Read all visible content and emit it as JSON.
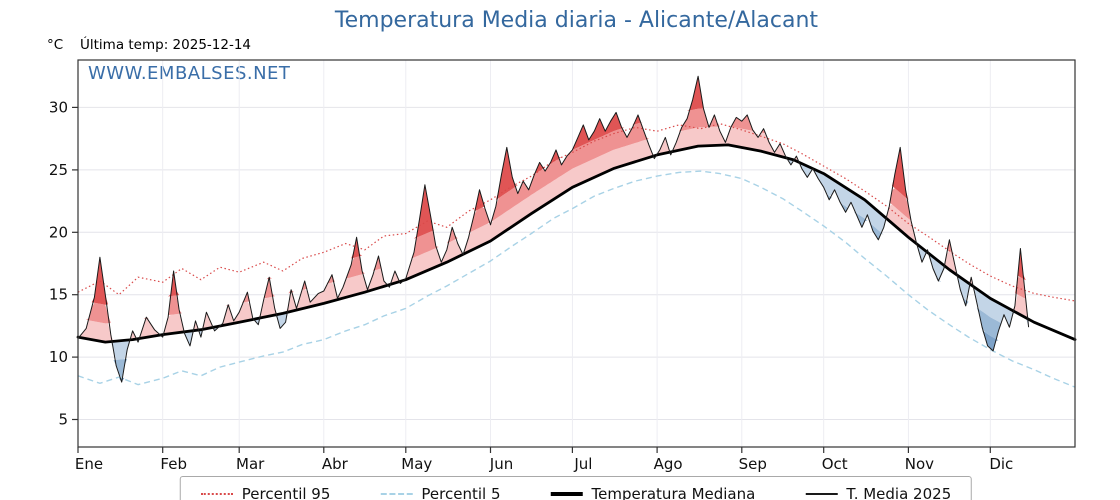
{
  "watermark": "WWW.EMBALSES.NET",
  "header": {
    "unit": "°C",
    "last_temp": "Última temp: 2025-12-14"
  },
  "colors": {
    "title_blue": "#34689e",
    "watermark_blue": "#3a6ea8",
    "grid": "#e4e4ea",
    "frame": "#333333"
  },
  "chart_data": {
    "type": "line",
    "title": "Temperatura Media diaria - Alicante/Alacant",
    "ylabel": "°C",
    "annotation_last_temp": "Última temp: 2025-12-14",
    "legend_position": "bottom",
    "grid": true,
    "x_range_days": 365,
    "x_tick_labels": [
      "Ene",
      "Feb",
      "Mar",
      "Abr",
      "May",
      "Jun",
      "Jul",
      "Ago",
      "Sep",
      "Oct",
      "Nov",
      "Dic"
    ],
    "month_start_days": [
      0,
      31,
      59,
      90,
      120,
      151,
      181,
      212,
      243,
      273,
      304,
      334
    ],
    "y_ticks": [
      5,
      10,
      15,
      20,
      25,
      30
    ],
    "ylim": [
      2.8,
      33.8
    ],
    "series": [
      {
        "id": "p95",
        "name": "Percentil 95",
        "style": "dotted",
        "color": "#d94a4a",
        "points": [
          [
            0,
            15.2
          ],
          [
            8,
            16.1
          ],
          [
            15,
            15.0
          ],
          [
            22,
            16.4
          ],
          [
            31,
            16.0
          ],
          [
            38,
            17.1
          ],
          [
            45,
            16.2
          ],
          [
            52,
            17.2
          ],
          [
            59,
            16.8
          ],
          [
            68,
            17.6
          ],
          [
            75,
            16.9
          ],
          [
            82,
            17.9
          ],
          [
            90,
            18.4
          ],
          [
            98,
            19.1
          ],
          [
            105,
            18.6
          ],
          [
            112,
            19.7
          ],
          [
            120,
            19.9
          ],
          [
            128,
            20.9
          ],
          [
            135,
            20.4
          ],
          [
            143,
            21.7
          ],
          [
            151,
            22.6
          ],
          [
            159,
            23.7
          ],
          [
            166,
            24.5
          ],
          [
            174,
            25.7
          ],
          [
            181,
            26.4
          ],
          [
            189,
            27.3
          ],
          [
            196,
            27.9
          ],
          [
            204,
            28.4
          ],
          [
            212,
            28.1
          ],
          [
            220,
            28.6
          ],
          [
            228,
            28.3
          ],
          [
            235,
            28.7
          ],
          [
            243,
            28.2
          ],
          [
            250,
            27.7
          ],
          [
            258,
            27.1
          ],
          [
            265,
            26.3
          ],
          [
            273,
            25.3
          ],
          [
            281,
            24.3
          ],
          [
            288,
            23.3
          ],
          [
            296,
            22.1
          ],
          [
            304,
            20.7
          ],
          [
            311,
            19.7
          ],
          [
            319,
            18.5
          ],
          [
            326,
            17.5
          ],
          [
            334,
            16.5
          ],
          [
            342,
            15.7
          ],
          [
            350,
            15.1
          ],
          [
            357,
            14.8
          ],
          [
            365,
            14.5
          ]
        ]
      },
      {
        "id": "p5",
        "name": "Percentil 5",
        "style": "dashed",
        "color": "#a8d2e6",
        "points": [
          [
            0,
            8.5
          ],
          [
            8,
            7.9
          ],
          [
            15,
            8.4
          ],
          [
            22,
            7.8
          ],
          [
            31,
            8.3
          ],
          [
            38,
            8.9
          ],
          [
            45,
            8.5
          ],
          [
            52,
            9.2
          ],
          [
            59,
            9.6
          ],
          [
            68,
            10.1
          ],
          [
            75,
            10.4
          ],
          [
            82,
            11.0
          ],
          [
            90,
            11.4
          ],
          [
            98,
            12.1
          ],
          [
            105,
            12.6
          ],
          [
            112,
            13.3
          ],
          [
            120,
            13.9
          ],
          [
            128,
            14.9
          ],
          [
            135,
            15.7
          ],
          [
            143,
            16.7
          ],
          [
            151,
            17.7
          ],
          [
            159,
            18.9
          ],
          [
            166,
            19.9
          ],
          [
            174,
            21.1
          ],
          [
            181,
            21.9
          ],
          [
            189,
            22.9
          ],
          [
            196,
            23.5
          ],
          [
            204,
            24.1
          ],
          [
            212,
            24.5
          ],
          [
            220,
            24.8
          ],
          [
            228,
            24.9
          ],
          [
            235,
            24.7
          ],
          [
            243,
            24.3
          ],
          [
            250,
            23.6
          ],
          [
            258,
            22.7
          ],
          [
            265,
            21.7
          ],
          [
            273,
            20.5
          ],
          [
            281,
            19.2
          ],
          [
            288,
            17.9
          ],
          [
            296,
            16.5
          ],
          [
            304,
            15.0
          ],
          [
            311,
            13.8
          ],
          [
            319,
            12.6
          ],
          [
            326,
            11.6
          ],
          [
            334,
            10.6
          ],
          [
            342,
            9.7
          ],
          [
            350,
            9.0
          ],
          [
            357,
            8.3
          ],
          [
            365,
            7.6
          ]
        ]
      },
      {
        "id": "median",
        "name": "Temperatura Mediana",
        "style": "solid-thick",
        "color": "#000000",
        "points": [
          [
            0,
            11.6
          ],
          [
            10,
            11.2
          ],
          [
            20,
            11.4
          ],
          [
            31,
            11.8
          ],
          [
            45,
            12.2
          ],
          [
            59,
            12.8
          ],
          [
            75,
            13.5
          ],
          [
            90,
            14.3
          ],
          [
            105,
            15.2
          ],
          [
            120,
            16.2
          ],
          [
            135,
            17.6
          ],
          [
            151,
            19.3
          ],
          [
            166,
            21.5
          ],
          [
            181,
            23.6
          ],
          [
            196,
            25.1
          ],
          [
            212,
            26.2
          ],
          [
            227,
            26.9
          ],
          [
            238,
            27.0
          ],
          [
            250,
            26.5
          ],
          [
            262,
            25.8
          ],
          [
            273,
            24.7
          ],
          [
            288,
            22.6
          ],
          [
            304,
            19.6
          ],
          [
            319,
            17.0
          ],
          [
            334,
            14.7
          ],
          [
            350,
            12.8
          ],
          [
            365,
            11.4
          ]
        ]
      },
      {
        "id": "t2025",
        "name": "T. Media 2025",
        "style": "solid-thin",
        "color": "#1a1a1a",
        "fill_above": [
          "#f7c9c9",
          "#ef9292",
          "#e05555"
        ],
        "fill_below": [
          "#c3d5e7",
          "#9bb9d6",
          "#7da2c8"
        ],
        "points": [
          [
            0,
            11.5
          ],
          [
            3,
            12.3
          ],
          [
            6,
            14.8
          ],
          [
            8,
            18.0
          ],
          [
            10,
            15.0
          ],
          [
            12,
            11.8
          ],
          [
            14,
            9.3
          ],
          [
            16,
            8.0
          ],
          [
            18,
            10.6
          ],
          [
            20,
            12.1
          ],
          [
            22,
            11.2
          ],
          [
            25,
            13.2
          ],
          [
            28,
            12.2
          ],
          [
            31,
            11.6
          ],
          [
            33,
            13.2
          ],
          [
            35,
            16.9
          ],
          [
            37,
            13.8
          ],
          [
            39,
            11.9
          ],
          [
            41,
            10.9
          ],
          [
            43,
            12.9
          ],
          [
            45,
            11.6
          ],
          [
            47,
            13.6
          ],
          [
            50,
            12.1
          ],
          [
            53,
            12.7
          ],
          [
            55,
            14.2
          ],
          [
            57,
            12.9
          ],
          [
            59,
            13.6
          ],
          [
            62,
            15.2
          ],
          [
            64,
            13.1
          ],
          [
            66,
            12.6
          ],
          [
            68,
            14.6
          ],
          [
            70,
            16.4
          ],
          [
            72,
            13.9
          ],
          [
            74,
            12.3
          ],
          [
            76,
            12.8
          ],
          [
            78,
            15.4
          ],
          [
            80,
            13.9
          ],
          [
            83,
            16.1
          ],
          [
            85,
            14.4
          ],
          [
            88,
            15.1
          ],
          [
            90,
            15.3
          ],
          [
            93,
            16.6
          ],
          [
            95,
            14.7
          ],
          [
            97,
            15.6
          ],
          [
            100,
            17.4
          ],
          [
            102,
            19.6
          ],
          [
            104,
            16.9
          ],
          [
            106,
            15.4
          ],
          [
            108,
            16.6
          ],
          [
            110,
            18.1
          ],
          [
            112,
            16.1
          ],
          [
            114,
            15.6
          ],
          [
            116,
            16.9
          ],
          [
            118,
            15.9
          ],
          [
            120,
            16.3
          ],
          [
            123,
            18.4
          ],
          [
            125,
            21.0
          ],
          [
            127,
            23.8
          ],
          [
            129,
            21.4
          ],
          [
            131,
            18.9
          ],
          [
            133,
            17.6
          ],
          [
            135,
            18.6
          ],
          [
            137,
            20.4
          ],
          [
            139,
            19.1
          ],
          [
            141,
            18.2
          ],
          [
            143,
            19.6
          ],
          [
            145,
            21.4
          ],
          [
            147,
            23.4
          ],
          [
            149,
            21.9
          ],
          [
            151,
            20.6
          ],
          [
            153,
            22.1
          ],
          [
            155,
            24.6
          ],
          [
            157,
            26.8
          ],
          [
            159,
            24.4
          ],
          [
            161,
            23.1
          ],
          [
            163,
            24.1
          ],
          [
            165,
            23.4
          ],
          [
            167,
            24.6
          ],
          [
            169,
            25.6
          ],
          [
            171,
            24.9
          ],
          [
            173,
            25.6
          ],
          [
            175,
            26.6
          ],
          [
            177,
            25.4
          ],
          [
            179,
            26.1
          ],
          [
            181,
            26.6
          ],
          [
            183,
            27.6
          ],
          [
            185,
            28.6
          ],
          [
            187,
            27.4
          ],
          [
            189,
            28.1
          ],
          [
            191,
            29.1
          ],
          [
            193,
            28.1
          ],
          [
            195,
            28.9
          ],
          [
            197,
            29.6
          ],
          [
            199,
            28.4
          ],
          [
            201,
            27.6
          ],
          [
            203,
            28.4
          ],
          [
            205,
            29.4
          ],
          [
            207,
            28.2
          ],
          [
            209,
            27.0
          ],
          [
            211,
            25.9
          ],
          [
            213,
            26.6
          ],
          [
            215,
            27.6
          ],
          [
            217,
            26.2
          ],
          [
            219,
            27.2
          ],
          [
            221,
            28.4
          ],
          [
            223,
            29.1
          ],
          [
            225,
            30.6
          ],
          [
            227,
            32.5
          ],
          [
            229,
            29.9
          ],
          [
            231,
            28.4
          ],
          [
            233,
            29.4
          ],
          [
            235,
            28.1
          ],
          [
            237,
            27.2
          ],
          [
            239,
            28.4
          ],
          [
            241,
            29.2
          ],
          [
            243,
            28.9
          ],
          [
            245,
            29.4
          ],
          [
            247,
            28.2
          ],
          [
            249,
            27.6
          ],
          [
            251,
            28.3
          ],
          [
            253,
            27.2
          ],
          [
            255,
            26.4
          ],
          [
            257,
            27.1
          ],
          [
            259,
            26.1
          ],
          [
            261,
            25.4
          ],
          [
            263,
            26.1
          ],
          [
            265,
            25.1
          ],
          [
            267,
            24.4
          ],
          [
            269,
            25.1
          ],
          [
            271,
            24.3
          ],
          [
            273,
            23.6
          ],
          [
            275,
            22.6
          ],
          [
            277,
            23.4
          ],
          [
            279,
            22.4
          ],
          [
            281,
            21.6
          ],
          [
            283,
            22.4
          ],
          [
            285,
            21.4
          ],
          [
            287,
            20.4
          ],
          [
            289,
            21.4
          ],
          [
            291,
            20.1
          ],
          [
            293,
            19.4
          ],
          [
            295,
            20.4
          ],
          [
            297,
            22.1
          ],
          [
            299,
            24.6
          ],
          [
            301,
            26.8
          ],
          [
            303,
            23.4
          ],
          [
            305,
            20.9
          ],
          [
            307,
            19.1
          ],
          [
            309,
            17.6
          ],
          [
            311,
            18.6
          ],
          [
            313,
            17.1
          ],
          [
            315,
            16.1
          ],
          [
            317,
            17.1
          ],
          [
            319,
            19.4
          ],
          [
            321,
            17.4
          ],
          [
            323,
            15.4
          ],
          [
            325,
            14.1
          ],
          [
            327,
            16.4
          ],
          [
            329,
            14.4
          ],
          [
            331,
            12.4
          ],
          [
            333,
            10.9
          ],
          [
            335,
            10.5
          ],
          [
            337,
            12.1
          ],
          [
            339,
            13.4
          ],
          [
            341,
            12.4
          ],
          [
            343,
            14.1
          ],
          [
            345,
            18.7
          ],
          [
            347,
            14.6
          ],
          [
            348,
            12.4
          ]
        ]
      }
    ]
  }
}
